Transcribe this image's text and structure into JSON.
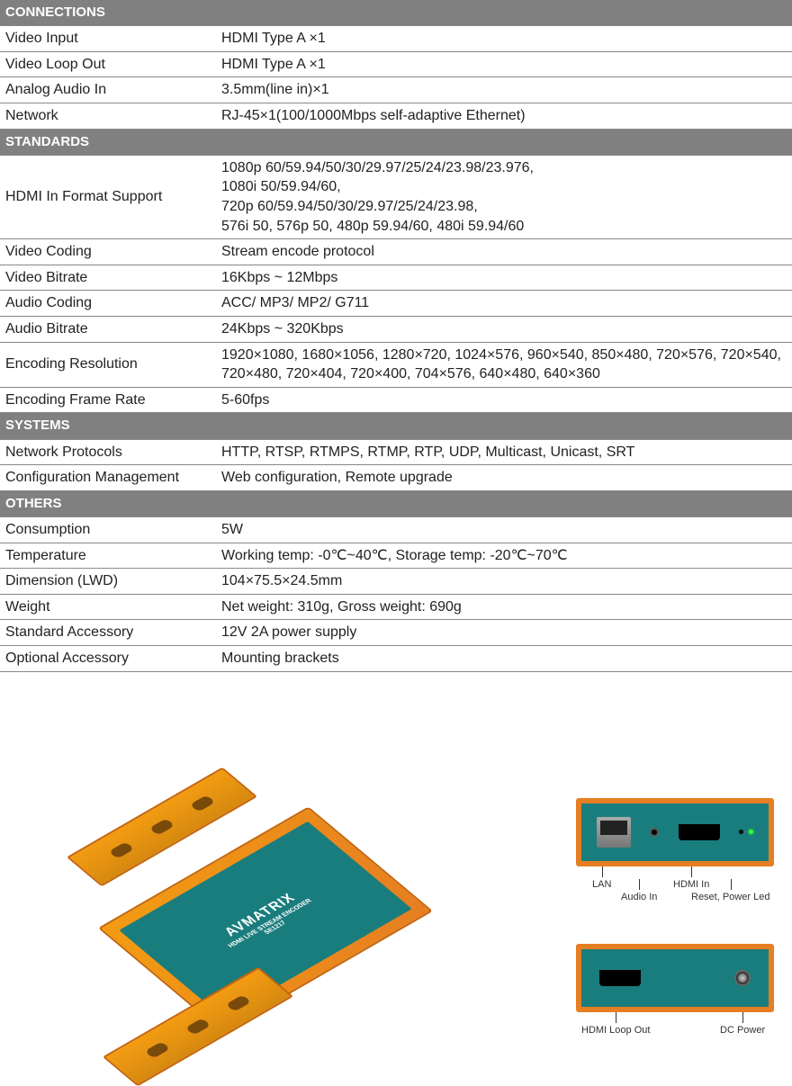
{
  "sections": [
    {
      "title": "CONNECTIONS",
      "rows": [
        {
          "label": "Video Input",
          "value": "HDMI Type A ×1"
        },
        {
          "label": "Video Loop Out",
          "value": "HDMI Type A ×1"
        },
        {
          "label": "Analog Audio In",
          "value": "3.5mm(line in)×1"
        },
        {
          "label": "Network",
          "value": "RJ-45×1(100/1000Mbps self-adaptive Ethernet)"
        }
      ]
    },
    {
      "title": "STANDARDS",
      "rows": [
        {
          "label": "HDMI In Format Support",
          "value": "1080p 60/59.94/50/30/29.97/25/24/23.98/23.976,\n1080i 50/59.94/60,\n720p 60/59.94/50/30/29.97/25/24/23.98,\n576i 50, 576p 50, 480p 59.94/60, 480i 59.94/60"
        },
        {
          "label": "Video Coding",
          "value": "Stream encode protocol"
        },
        {
          "label": "Video Bitrate",
          "value": "16Kbps ~ 12Mbps"
        },
        {
          "label": "Audio Coding",
          "value": "ACC/ MP3/ MP2/ G711"
        },
        {
          "label": "Audio Bitrate",
          "value": "24Kbps ~ 320Kbps"
        },
        {
          "label": "Encoding Resolution",
          "value": "1920×1080, 1680×1056, 1280×720, 1024×576, 960×540, 850×480, 720×576, 720×540, 720×480, 720×404, 720×400, 704×576, 640×480, 640×360"
        },
        {
          "label": "Encoding Frame Rate",
          "value": "5-60fps"
        }
      ]
    },
    {
      "title": "SYSTEMS",
      "rows": [
        {
          "label": "Network Protocols",
          "value": "HTTP, RTSP, RTMPS, RTMP, RTP, UDP, Multicast, Unicast, SRT"
        },
        {
          "label": "Configuration Management",
          "value": "Web configuration, Remote upgrade"
        }
      ]
    },
    {
      "title": "OTHERS",
      "rows": [
        {
          "label": "Consumption",
          "value": "5W"
        },
        {
          "label": "Temperature",
          "value": "Working temp: -0℃~40℃, Storage temp: -20℃~70℃"
        },
        {
          "label": "Dimension (LWD)",
          "value": "104×75.5×24.5mm"
        },
        {
          "label": "Weight",
          "value": "Net weight: 310g, Gross weight: 690g"
        },
        {
          "label": "Standard Accessory",
          "value": "12V 2A power supply"
        },
        {
          "label": "Optional Accessory",
          "value": "Mounting brackets"
        }
      ]
    }
  ],
  "device": {
    "brand_text": "AVMATRIX",
    "subtitle": "HDMI LIVE STREAM ENCODER",
    "model": "SE1217",
    "body_color": "#e67e22",
    "top_color": "#1a7d7d"
  },
  "panel_front": {
    "labels": {
      "lan": "LAN",
      "audio_in": "Audio In",
      "hdmi_in": "HDMI In",
      "reset_power": "Reset, Power Led"
    }
  },
  "panel_rear": {
    "labels": {
      "hdmi_loop": "HDMI Loop Out",
      "dc_power": "DC Power"
    }
  },
  "colors": {
    "section_header_bg": "#808080",
    "section_header_text": "#ffffff",
    "row_border": "#888888",
    "text": "#222222",
    "device_orange": "#e67e22",
    "device_teal": "#1a7d7d"
  }
}
